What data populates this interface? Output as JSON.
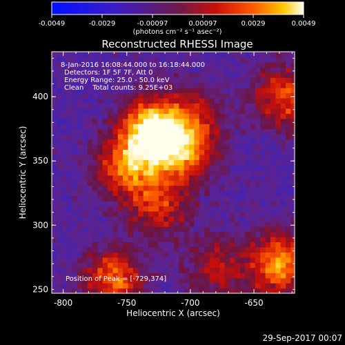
{
  "colorbar": {
    "ticks": [
      "-0.0049",
      "-0.0029",
      "-0.00097",
      "0.00097",
      "0.0029",
      "0.0049"
    ],
    "unit": "(photons cm⁻² s⁻¹ asec⁻²)",
    "vmin": -0.0049,
    "vmax": 0.0049
  },
  "chart_data": {
    "type": "heatmap",
    "title": "Reconstructed RHESSI Image",
    "xlabel": "Heliocentric X (arcsec)",
    "ylabel": "Heliocentric Y (arcsec)",
    "x_ticks": [
      -800,
      -750,
      -700,
      -650
    ],
    "y_ticks": [
      300,
      350,
      400
    ],
    "xlim": [
      -809,
      -618
    ],
    "ylim": [
      247,
      435
    ],
    "annotations": [
      "8-Jan-2016 16:08:44.000 to 16:18:44.000",
      "Detectors: 1F 5F 7F, Att 0",
      "Energy Range: 25.0 - 50.0 keV",
      "Clean    Total counts: 9.25E+03"
    ],
    "peak_label": "Position of Peak = [-729,374]",
    "peak": [
      -729,
      374
    ],
    "sources": [
      {
        "x": -729,
        "y": 374,
        "amplitude": 1.0
      },
      {
        "x": -705,
        "y": 355,
        "amplitude": 0.55
      },
      {
        "x": -750,
        "y": 345,
        "amplitude": 0.6
      },
      {
        "x": -725,
        "y": 315,
        "amplitude": 0.45
      },
      {
        "x": -695,
        "y": 385,
        "amplitude": 0.35
      },
      {
        "x": -625,
        "y": 400,
        "amplitude": 0.55
      },
      {
        "x": -630,
        "y": 270,
        "amplitude": 0.7
      },
      {
        "x": -760,
        "y": 258,
        "amplitude": 0.6
      },
      {
        "x": -680,
        "y": 268,
        "amplitude": 0.35
      }
    ]
  },
  "footer": {
    "timestamp": "29-Sep-2017 00:07"
  }
}
